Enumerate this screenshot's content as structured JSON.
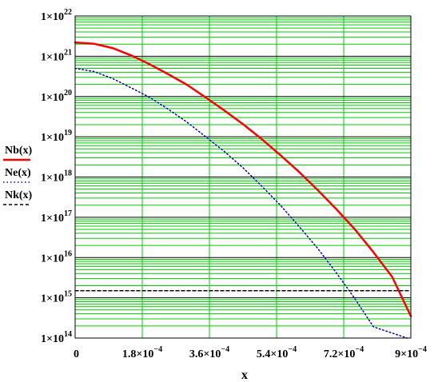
{
  "chart_data": {
    "type": "line",
    "xlabel": "x",
    "ylabel": "",
    "yscale": "log",
    "xlim": [
      0,
      0.0009
    ],
    "ylim": [
      100000000000000.0,
      1e+22
    ],
    "grid": true,
    "legend_position": "left",
    "x_ticks": [
      {
        "value": 0,
        "base": "0",
        "exp": ""
      },
      {
        "value": 0.00018,
        "base": "1.8×10",
        "exp": "−4"
      },
      {
        "value": 0.00036,
        "base": "3.6×10",
        "exp": "−4"
      },
      {
        "value": 0.00054,
        "base": "5.4×10",
        "exp": "−4"
      },
      {
        "value": 0.00072,
        "base": "7.2×10",
        "exp": "−4"
      },
      {
        "value": 0.0009,
        "base": "9×10",
        "exp": "−4"
      }
    ],
    "y_ticks": [
      {
        "value": 1e+22,
        "base": "1×10",
        "exp": "22"
      },
      {
        "value": 1e+21,
        "base": "1×10",
        "exp": "21"
      },
      {
        "value": 1e+20,
        "base": "1×10",
        "exp": "20"
      },
      {
        "value": 1e+19,
        "base": "1×10",
        "exp": "19"
      },
      {
        "value": 1e+18,
        "base": "1×10",
        "exp": "18"
      },
      {
        "value": 1e+17,
        "base": "1×10",
        "exp": "17"
      },
      {
        "value": 1e+16,
        "base": "1×10",
        "exp": "16"
      },
      {
        "value": 1000000000000000.0,
        "base": "1×10",
        "exp": "15"
      },
      {
        "value": 100000000000000.0,
        "base": "1×10",
        "exp": "14"
      }
    ],
    "x": [
      0,
      5e-05,
      0.0001,
      0.00015,
      0.0002,
      0.00025,
      0.0003,
      0.00035,
      0.0004,
      0.00045,
      0.0005,
      0.00055,
      0.0006,
      0.00065,
      0.0007,
      0.00075,
      0.0008,
      0.00085,
      0.0009
    ],
    "series": [
      {
        "name": "Nb(x)",
        "style": "solid",
        "color": "#ff0000",
        "values": [
          2.2e+21,
          2.05e+21,
          1.6e+21,
          1.05e+21,
          6.3e+20,
          3.55e+20,
          1.95e+20,
          9.5e+19,
          4.5e+19,
          2.05e+19,
          8.8e+18,
          3.5e+18,
          1.35e+18,
          4.8e+17,
          1.6e+17,
          5e+16,
          1.35e+16,
          3300000000000000.0,
          350000000000000.0
        ]
      },
      {
        "name": "Ne(x)",
        "style": "dotted",
        "color": "#0000cc",
        "values": [
          5e+20,
          4.2e+20,
          2.8e+20,
          1.65e+20,
          9.5e+19,
          4.8e+19,
          2.3e+19,
          1e+19,
          4.3e+18,
          1.7e+18,
          6e+17,
          2e+17,
          6e+16,
          1.7e+16,
          4200000000000000.0,
          950000000000000.0,
          190000000000000.0,
          null,
          null
        ],
        "x_end": 0.00089,
        "y_end": 100000000000000.0
      },
      {
        "name": "Nk(x)",
        "style": "dashed",
        "color": "#000000",
        "values": [
          1500000000000000.0,
          1500000000000000.0,
          1500000000000000.0,
          1500000000000000.0,
          1500000000000000.0,
          1500000000000000.0,
          1500000000000000.0,
          1500000000000000.0,
          1500000000000000.0,
          1500000000000000.0,
          1500000000000000.0,
          1500000000000000.0,
          1500000000000000.0,
          1500000000000000.0,
          1500000000000000.0,
          1500000000000000.0,
          1500000000000000.0,
          1500000000000000.0,
          1500000000000000.0
        ]
      }
    ],
    "colors": {
      "grid_major": "#000000",
      "grid_minor": "#00cc00",
      "frame": "#000000"
    }
  }
}
